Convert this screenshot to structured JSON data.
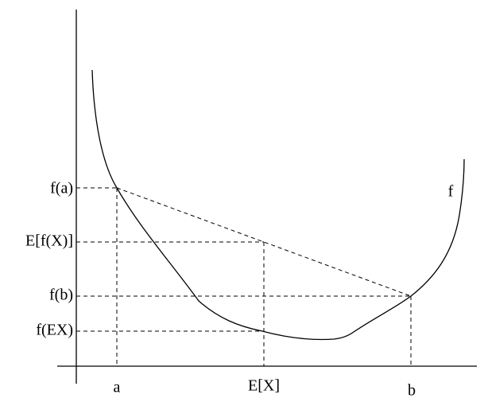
{
  "y_labels": [
    "f(a)",
    "E[f(X)]",
    "f(b)",
    "f(EX)"
  ],
  "x_labels": [
    "a",
    "E[X]",
    "b"
  ],
  "curve_label": "f"
}
